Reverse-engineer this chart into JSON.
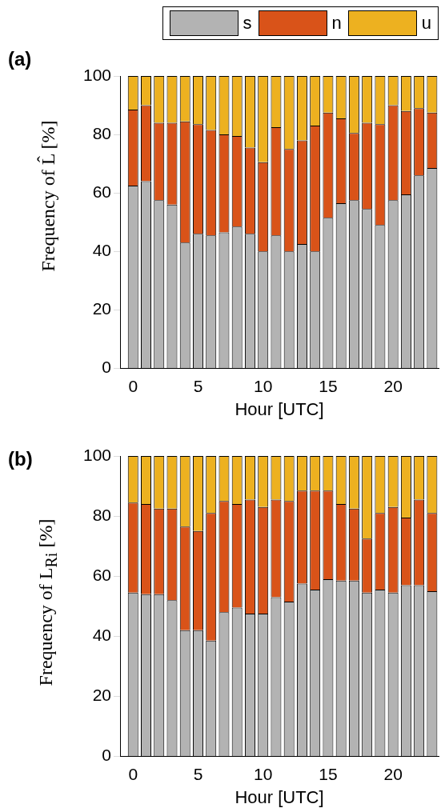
{
  "chart_data": [
    {
      "type": "bar",
      "title": "(a)",
      "xlabel": "Hour [UTC]",
      "ylabel": "Frequency of L̂ [%]",
      "stacked": true,
      "x": [
        0,
        1,
        2,
        3,
        4,
        5,
        6,
        7,
        8,
        9,
        10,
        11,
        12,
        13,
        14,
        15,
        16,
        17,
        18,
        19,
        20,
        21,
        22,
        23
      ],
      "xlim": [
        -1,
        23.5
      ],
      "xticks": [
        0,
        5,
        10,
        15,
        20
      ],
      "ylim": [
        0,
        100
      ],
      "yticks": [
        0,
        20,
        40,
        60,
        80,
        100
      ],
      "grid": false,
      "legend": "top",
      "series": [
        {
          "name": "s",
          "color": "#b3b3b3",
          "values": [
            62.5,
            64,
            57.5,
            56,
            43,
            46,
            45.5,
            46.5,
            48.5,
            46,
            40,
            45.5,
            40,
            42.5,
            40,
            51.5,
            56.5,
            57.5,
            54.5,
            49,
            57.5,
            59.5,
            66,
            68.5
          ]
        },
        {
          "name": "n",
          "color": "#d95319",
          "values": [
            26,
            26,
            26.5,
            28,
            41.5,
            37.5,
            36,
            33.5,
            31,
            29.5,
            30.5,
            37,
            35,
            35.5,
            43,
            36,
            29,
            23,
            29.5,
            34.5,
            32.5,
            28.5,
            23,
            19
          ]
        },
        {
          "name": "u",
          "color": "#edb120",
          "values": [
            11.5,
            10,
            16,
            16,
            15.5,
            16.5,
            18.5,
            20,
            20.5,
            24.5,
            29.5,
            17.5,
            25,
            22,
            17,
            12.5,
            14.5,
            19.5,
            16,
            16.5,
            10,
            12,
            11,
            12.5
          ]
        }
      ]
    },
    {
      "type": "bar",
      "title": "(b)",
      "xlabel": "Hour [UTC]",
      "ylabel": "Frequency of L$_{Ri}$ [%]",
      "stacked": true,
      "x": [
        0,
        1,
        2,
        3,
        4,
        5,
        6,
        7,
        8,
        9,
        10,
        11,
        12,
        13,
        14,
        15,
        16,
        17,
        18,
        19,
        20,
        21,
        22,
        23
      ],
      "xlim": [
        -1,
        23.5
      ],
      "xticks": [
        0,
        5,
        10,
        15,
        20
      ],
      "ylim": [
        0,
        100
      ],
      "yticks": [
        0,
        20,
        40,
        60,
        80,
        100
      ],
      "grid": false,
      "series": [
        {
          "color": "#b3b3b3",
          "values": [
            54.5,
            54,
            54,
            52,
            42,
            42,
            38.5,
            48,
            49.5,
            47.5,
            47.5,
            53,
            51.5,
            57.5,
            55.5,
            59,
            58.5,
            58.5,
            54.5,
            55.5,
            54.5,
            57,
            57,
            55
          ]
        },
        {
          "color": "#d95319",
          "values": [
            30,
            30,
            28.5,
            30.5,
            34.5,
            33,
            42.5,
            37,
            34.5,
            38,
            35.5,
            32.5,
            33.5,
            31,
            33,
            29.5,
            25.5,
            24,
            18,
            25.5,
            28.5,
            22.5,
            28.5,
            26
          ]
        },
        {
          "color": "#edb120",
          "values": [
            15.5,
            16,
            17.5,
            17.5,
            23.5,
            25,
            19,
            15,
            16,
            14.5,
            17,
            14.5,
            15,
            11.5,
            11.5,
            11.5,
            16,
            17.5,
            27.5,
            19,
            17,
            20.5,
            14.5,
            19
          ]
        }
      ]
    }
  ]
}
